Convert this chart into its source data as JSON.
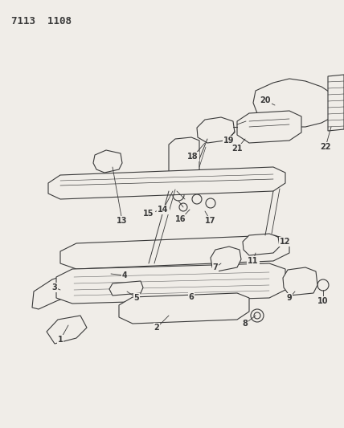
{
  "title": "7113  1108",
  "bg_color": "#f0ede8",
  "line_color": "#3a3a3a",
  "lw": 0.8,
  "fig_w": 4.28,
  "fig_h": 5.33,
  "dpi": 100
}
